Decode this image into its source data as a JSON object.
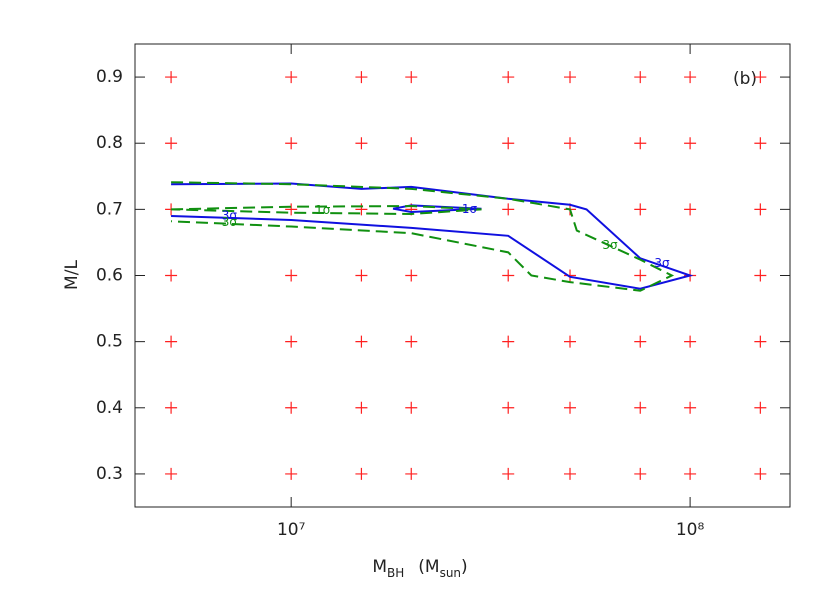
{
  "chart_data": {
    "type": "contour",
    "panel_label": "(b)",
    "xlabel": {
      "main": "M",
      "sub": "BH",
      "unit_open": "(M",
      "unit_sub": "sun",
      "unit_close": ")"
    },
    "ylabel": "M/L",
    "xlog": true,
    "xlim": [
      4060000,
      178000000
    ],
    "ylim": [
      0.25,
      0.95
    ],
    "xticks": [
      {
        "value": 10000000,
        "label": "10⁷"
      },
      {
        "value": 100000000,
        "label": "10⁸"
      }
    ],
    "yticks": [
      0.3,
      0.4,
      0.5,
      0.6,
      0.7,
      0.8,
      0.9
    ],
    "grid_points": {
      "color": "#ff2020",
      "x": [
        5000000,
        10000000,
        15000000,
        20000000,
        35000000,
        50000000,
        75000000,
        100000000,
        150000000
      ],
      "y": [
        0.3,
        0.4,
        0.5,
        0.6,
        0.7,
        0.8,
        0.9
      ]
    },
    "series": [
      {
        "color": "#1010e0",
        "dash": false,
        "x": [
          5000000,
          10000000,
          15000000,
          20000000,
          35000000,
          50000000,
          55000000,
          75000000,
          100000000,
          75000000,
          50000000,
          35000000,
          20000000,
          10000000,
          5000000
        ],
        "values": [
          0.738,
          0.739,
          0.731,
          0.734,
          0.716,
          0.707,
          0.7,
          0.626,
          0.6,
          0.58,
          0.598,
          0.66,
          0.672,
          0.684,
          0.69
        ]
      },
      {
        "color": "#1010e0",
        "dash": false,
        "x": [
          18000000,
          20000000,
          30000000,
          20000000,
          18000000
        ],
        "values": [
          0.701,
          0.706,
          0.701,
          0.696,
          0.701
        ]
      },
      {
        "color": "#109010",
        "dash": true,
        "x": [
          5000000,
          10000000,
          20000000,
          35000000,
          50000000,
          52000000,
          75000000,
          90000000,
          75000000,
          50000000,
          40000000,
          35000000,
          20000000,
          10000000,
          5000000
        ],
        "values": [
          0.741,
          0.738,
          0.731,
          0.716,
          0.7,
          0.668,
          0.624,
          0.6,
          0.577,
          0.59,
          0.6,
          0.635,
          0.664,
          0.674,
          0.682
        ]
      },
      {
        "color": "#109010",
        "dash": true,
        "x": [
          5000000,
          10000000,
          20000000,
          30000000,
          20000000,
          10000000,
          5000000
        ],
        "values": [
          0.7,
          0.704,
          0.705,
          0.7,
          0.693,
          0.695,
          0.7
        ]
      }
    ],
    "annotations": [
      {
        "text": "3σ",
        "x": 7000000,
        "y": 0.69,
        "color": "#1010e0"
      },
      {
        "text": "3σ",
        "x": 7000000,
        "y": 0.68,
        "color": "#109010"
      },
      {
        "text": "1σ",
        "x": 12000000,
        "y": 0.698,
        "color": "#109010"
      },
      {
        "text": "1σ",
        "x": 28000000,
        "y": 0.7,
        "color": "#1010e0"
      },
      {
        "text": "3σ",
        "x": 63000000,
        "y": 0.645,
        "color": "#109010"
      },
      {
        "text": "3σ",
        "x": 85000000,
        "y": 0.618,
        "color": "#1010e0"
      }
    ]
  }
}
